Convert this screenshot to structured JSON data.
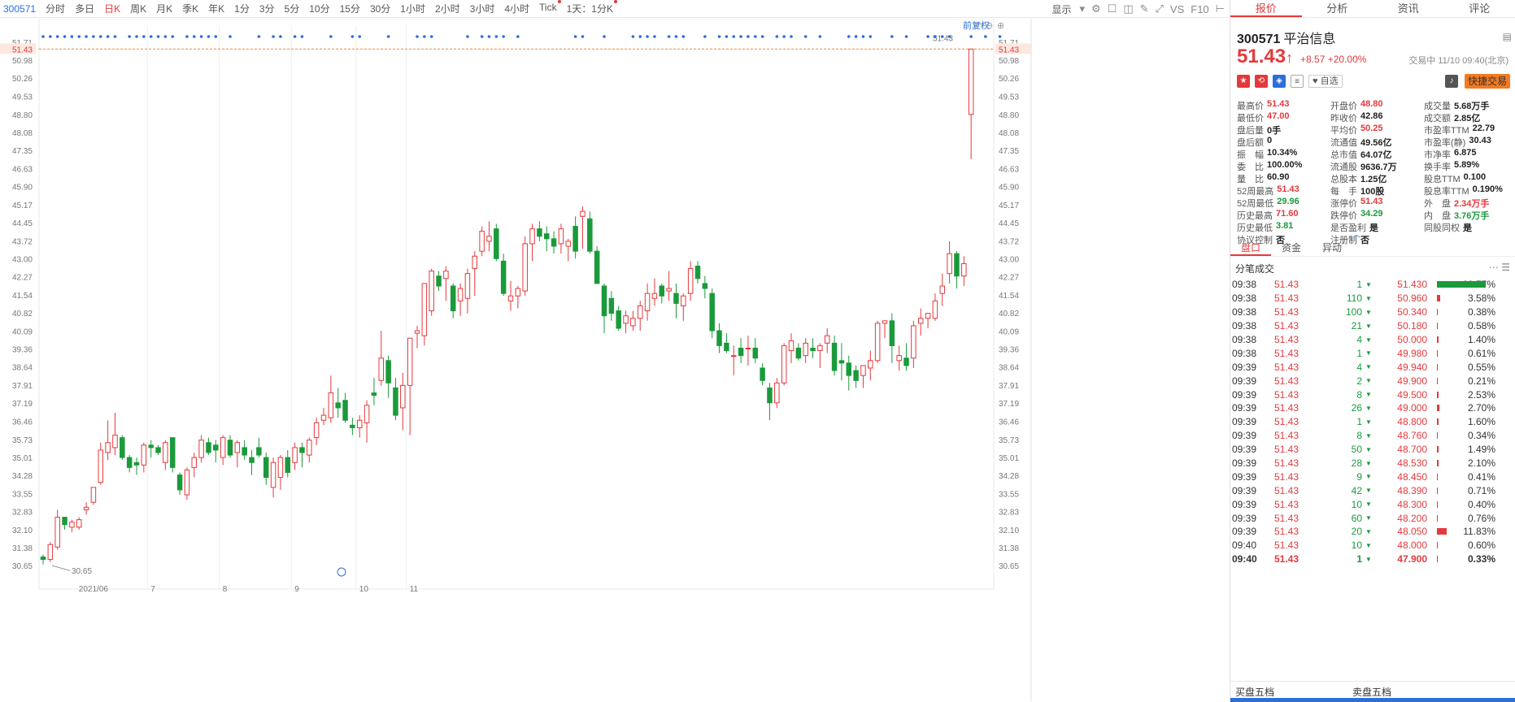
{
  "toolbar": {
    "code": "300571",
    "periods": [
      "分时",
      "多日",
      "日K",
      "周K",
      "月K",
      "季K",
      "年K",
      "1分",
      "3分",
      "5分",
      "10分",
      "15分",
      "30分",
      "1小时",
      "2小时",
      "3小时",
      "4小时",
      "Tick",
      "1天：1分K"
    ],
    "active_index": 2,
    "display_label": "显示",
    "icons": [
      "gear-icon",
      "checkbox-icon",
      "camera-icon",
      "pen-icon",
      "expand-icon",
      "VS",
      "F10",
      "collapse-icon"
    ]
  },
  "chart_overlay": {
    "adjust_label": "前复权",
    "price_flag": "51.43",
    "min_label": "30.65",
    "zoom_icons": [
      "undo-icon",
      "zoom-out-icon",
      "zoom-in-icon"
    ]
  },
  "chart_data": {
    "type": "candlestick",
    "ylim": [
      30.2,
      51.9
    ],
    "y_ticks": [
      "51.71",
      "51.43",
      "50.98",
      "50.26",
      "49.53",
      "48.80",
      "48.08",
      "47.35",
      "46.63",
      "45.90",
      "45.17",
      "44.45",
      "43.72",
      "43.00",
      "42.27",
      "41.54",
      "40.82",
      "40.09",
      "39.36",
      "38.64",
      "37.91",
      "37.19",
      "36.46",
      "35.73",
      "35.01",
      "34.28",
      "33.55",
      "32.83",
      "32.10",
      "31.38",
      "30.65"
    ],
    "x_labels": [
      "2021/06",
      "7",
      "8",
      "9",
      "10",
      "11"
    ],
    "x_label_index": [
      5,
      15,
      25,
      35,
      44,
      51
    ],
    "last_price": 51.43,
    "candles": [
      [
        31.0,
        31.1,
        30.7,
        30.9
      ],
      [
        30.9,
        31.6,
        30.8,
        31.5
      ],
      [
        31.4,
        32.9,
        31.3,
        32.6
      ],
      [
        32.6,
        32.6,
        32.1,
        32.3
      ],
      [
        32.2,
        32.5,
        32.0,
        32.4
      ],
      [
        32.2,
        32.6,
        32.1,
        32.5
      ],
      [
        32.9,
        33.2,
        32.7,
        33.0
      ],
      [
        33.2,
        33.8,
        33.1,
        33.8
      ],
      [
        34.0,
        35.6,
        33.9,
        35.3
      ],
      [
        35.2,
        36.5,
        34.9,
        35.6
      ],
      [
        35.4,
        36.8,
        35.1,
        35.9
      ],
      [
        35.8,
        35.9,
        34.9,
        35.0
      ],
      [
        35.0,
        35.1,
        34.4,
        34.6
      ],
      [
        34.8,
        35.0,
        34.3,
        34.7
      ],
      [
        34.7,
        35.6,
        34.4,
        35.5
      ],
      [
        35.5,
        35.7,
        35.0,
        35.4
      ],
      [
        35.4,
        35.5,
        35.1,
        35.2
      ],
      [
        34.8,
        35.7,
        34.5,
        35.6
      ],
      [
        35.8,
        35.8,
        34.4,
        34.6
      ],
      [
        34.3,
        34.4,
        33.5,
        33.7
      ],
      [
        33.5,
        34.6,
        33.3,
        34.5
      ],
      [
        34.6,
        35.2,
        34.2,
        35.0
      ],
      [
        35.0,
        35.9,
        34.8,
        35.7
      ],
      [
        35.6,
        35.8,
        35.1,
        35.2
      ],
      [
        35.5,
        35.7,
        34.8,
        35.3
      ],
      [
        35.0,
        35.9,
        34.7,
        35.8
      ],
      [
        35.7,
        35.9,
        35.0,
        35.1
      ],
      [
        35.2,
        35.7,
        34.6,
        35.6
      ],
      [
        35.4,
        35.7,
        34.9,
        35.1
      ],
      [
        35.0,
        35.3,
        34.3,
        34.8
      ],
      [
        35.4,
        35.8,
        35.0,
        35.1
      ],
      [
        35.0,
        35.2,
        33.9,
        34.2
      ],
      [
        33.8,
        35.0,
        33.4,
        34.8
      ],
      [
        34.2,
        35.1,
        33.7,
        35.0
      ],
      [
        35.0,
        35.3,
        34.2,
        34.4
      ],
      [
        34.8,
        35.6,
        34.5,
        35.4
      ],
      [
        35.4,
        35.6,
        34.6,
        35.2
      ],
      [
        35.1,
        35.8,
        34.8,
        35.7
      ],
      [
        35.8,
        36.6,
        35.5,
        36.4
      ],
      [
        36.5,
        37.0,
        36.3,
        36.7
      ],
      [
        36.6,
        38.3,
        36.4,
        37.6
      ],
      [
        37.2,
        37.8,
        36.6,
        37.0
      ],
      [
        37.3,
        37.6,
        36.4,
        36.5
      ],
      [
        36.3,
        36.6,
        35.9,
        36.2
      ],
      [
        36.2,
        36.7,
        35.8,
        36.5
      ],
      [
        36.4,
        37.3,
        35.6,
        37.1
      ],
      [
        37.6,
        38.2,
        37.1,
        37.5
      ],
      [
        38.1,
        40.1,
        37.9,
        39.0
      ],
      [
        38.9,
        39.1,
        37.4,
        38.0
      ],
      [
        37.8,
        38.2,
        36.5,
        36.7
      ],
      [
        37.0,
        38.4,
        36.1,
        37.9
      ],
      [
        37.9,
        39.8,
        35.9,
        39.8
      ],
      [
        40.0,
        40.3,
        39.4,
        40.1
      ],
      [
        39.9,
        42.0,
        39.5,
        42.0
      ],
      [
        40.9,
        42.6,
        40.7,
        42.5
      ],
      [
        42.3,
        42.5,
        41.7,
        41.9
      ],
      [
        42.2,
        42.7,
        41.3,
        42.5
      ],
      [
        41.9,
        42.0,
        40.6,
        40.9
      ],
      [
        41.3,
        42.0,
        40.7,
        41.8
      ],
      [
        41.4,
        42.6,
        40.8,
        42.4
      ],
      [
        42.6,
        43.3,
        41.5,
        43.1
      ],
      [
        43.3,
        44.3,
        43.1,
        44.1
      ],
      [
        43.7,
        44.5,
        43.3,
        43.9
      ],
      [
        44.2,
        44.4,
        42.9,
        43.0
      ],
      [
        42.9,
        43.2,
        41.5,
        41.6
      ],
      [
        41.3,
        42.1,
        40.9,
        41.5
      ],
      [
        41.5,
        41.9,
        41.0,
        41.8
      ],
      [
        41.7,
        43.9,
        41.5,
        43.6
      ],
      [
        43.6,
        44.4,
        42.9,
        44.2
      ],
      [
        44.2,
        44.5,
        43.7,
        43.9
      ],
      [
        44.0,
        44.3,
        43.3,
        43.8
      ],
      [
        43.8,
        44.1,
        43.2,
        43.5
      ],
      [
        43.6,
        44.4,
        43.2,
        44.2
      ],
      [
        43.5,
        43.8,
        42.9,
        43.7
      ],
      [
        44.3,
        44.7,
        43.0,
        43.3
      ],
      [
        44.7,
        45.1,
        43.4,
        44.9
      ],
      [
        44.6,
        44.9,
        43.2,
        43.3
      ],
      [
        43.3,
        43.5,
        42.0,
        42.0
      ],
      [
        41.9,
        42.0,
        40.0,
        40.7
      ],
      [
        41.4,
        41.7,
        40.5,
        40.8
      ],
      [
        40.9,
        41.1,
        40.1,
        40.2
      ],
      [
        40.4,
        40.9,
        40.0,
        40.7
      ],
      [
        40.3,
        40.9,
        40.1,
        40.6
      ],
      [
        40.6,
        41.3,
        40.1,
        41.1
      ],
      [
        40.9,
        42.0,
        40.5,
        41.6
      ],
      [
        41.4,
        42.2,
        41.1,
        41.6
      ],
      [
        41.9,
        42.0,
        41.2,
        41.5
      ],
      [
        41.7,
        42.5,
        41.3,
        41.8
      ],
      [
        41.6,
        42.0,
        40.6,
        41.2
      ],
      [
        41.1,
        41.6,
        40.5,
        41.5
      ],
      [
        41.6,
        42.9,
        41.3,
        42.6
      ],
      [
        42.7,
        42.9,
        42.0,
        42.2
      ],
      [
        42.0,
        42.3,
        41.4,
        41.8
      ],
      [
        41.6,
        41.8,
        39.8,
        40.1
      ],
      [
        40.1,
        40.4,
        39.2,
        39.5
      ],
      [
        39.6,
        40.0,
        39.2,
        39.3
      ],
      [
        39.1,
        39.5,
        38.3,
        39.1
      ],
      [
        39.4,
        39.8,
        38.8,
        39.1
      ],
      [
        39.4,
        39.9,
        38.7,
        39.4
      ],
      [
        39.4,
        39.8,
        38.8,
        39.0
      ],
      [
        38.6,
        38.8,
        37.9,
        38.1
      ],
      [
        37.8,
        38.0,
        36.5,
        37.2
      ],
      [
        37.2,
        38.2,
        37.0,
        38.0
      ],
      [
        38.0,
        39.6,
        37.9,
        39.5
      ],
      [
        39.3,
        40.0,
        38.8,
        39.7
      ],
      [
        39.4,
        39.6,
        38.9,
        39.0
      ],
      [
        39.1,
        39.8,
        38.8,
        39.6
      ],
      [
        39.4,
        39.8,
        39.0,
        39.3
      ],
      [
        39.3,
        39.6,
        38.6,
        39.5
      ],
      [
        39.6,
        40.2,
        39.2,
        39.9
      ],
      [
        39.6,
        39.9,
        38.3,
        38.5
      ],
      [
        38.9,
        39.6,
        38.1,
        38.8
      ],
      [
        38.8,
        39.1,
        37.7,
        38.3
      ],
      [
        38.5,
        38.7,
        37.8,
        38.1
      ],
      [
        38.3,
        38.7,
        37.8,
        38.7
      ],
      [
        38.6,
        39.3,
        38.1,
        38.9
      ],
      [
        38.9,
        40.5,
        38.8,
        40.4
      ],
      [
        40.4,
        40.5,
        39.8,
        40.5
      ],
      [
        40.5,
        40.8,
        38.8,
        39.5
      ],
      [
        38.9,
        39.5,
        38.5,
        39.1
      ],
      [
        39.0,
        39.6,
        38.5,
        38.7
      ],
      [
        39.0,
        40.5,
        38.6,
        40.3
      ],
      [
        40.4,
        41.0,
        39.9,
        40.6
      ],
      [
        40.6,
        40.8,
        40.2,
        40.8
      ],
      [
        40.6,
        41.6,
        40.5,
        41.3
      ],
      [
        41.6,
        42.4,
        41.1,
        41.9
      ],
      [
        42.4,
        43.7,
        42.0,
        43.2
      ],
      [
        43.2,
        43.3,
        41.8,
        42.3
      ],
      [
        42.3,
        43.1,
        41.9,
        42.8
      ],
      [
        48.8,
        51.43,
        47.0,
        51.43
      ]
    ],
    "dots": [
      0,
      1,
      2,
      3,
      4,
      5,
      6,
      7,
      8,
      9,
      10,
      12,
      13,
      14,
      15,
      16,
      17,
      18,
      20,
      21,
      22,
      23,
      24,
      26,
      30,
      32,
      33,
      35,
      36,
      40,
      43,
      44,
      48,
      52,
      53,
      54,
      59,
      61,
      62,
      63,
      64,
      66,
      74,
      75,
      78,
      82,
      83,
      84,
      85,
      87,
      88,
      89,
      92,
      94,
      95,
      96,
      97,
      98,
      99,
      100,
      102,
      103,
      104,
      106,
      108,
      112,
      113,
      114,
      115,
      118,
      120,
      123,
      124,
      125,
      126,
      129,
      131,
      133
    ]
  },
  "panel": {
    "tabs": [
      "报价",
      "分析",
      "资讯",
      "评论"
    ],
    "active_tab": 0,
    "stock_code": "300571",
    "stock_name": "平治信息",
    "price": "51.43",
    "arrow": "↑",
    "change": "+8.57",
    "change_pct": "+20.00%",
    "trade_status": "交易中 11/10 09:40(北京)",
    "watch_label": "自选",
    "fast_trade": "快捷交易",
    "stats": [
      [
        {
          "k": "最高价",
          "v": "51.43",
          "c": "red"
        },
        {
          "k": "开盘价",
          "v": "48.80",
          "c": "red"
        },
        {
          "k": "成交量",
          "v": "5.68万手",
          "c": "blk"
        }
      ],
      [
        {
          "k": "最低价",
          "v": "47.00",
          "c": "red"
        },
        {
          "k": "昨收价",
          "v": "42.86",
          "c": "blk"
        },
        {
          "k": "成交额",
          "v": "2.85亿",
          "c": "blk"
        }
      ],
      [
        {
          "k": "盘后量",
          "v": "0手",
          "c": "blk"
        },
        {
          "k": "平均价",
          "v": "50.25",
          "c": "red"
        },
        {
          "k": "市盈率TTM",
          "v": "22.79",
          "c": "blk"
        }
      ],
      [
        {
          "k": "盘后额",
          "v": "0",
          "c": "blk"
        },
        {
          "k": "流通值",
          "v": "49.56亿",
          "c": "blk"
        },
        {
          "k": "市盈率(静)",
          "v": "30.43",
          "c": "blk"
        }
      ],
      [
        {
          "k": "振　幅",
          "v": "10.34%",
          "c": "blk"
        },
        {
          "k": "总市值",
          "v": "64.07亿",
          "c": "blk"
        },
        {
          "k": "市净率",
          "v": "6.875",
          "c": "blk"
        }
      ],
      [
        {
          "k": "委　比",
          "v": "100.00%",
          "c": "blk"
        },
        {
          "k": "流通股",
          "v": "9636.7万",
          "c": "blk"
        },
        {
          "k": "换手率",
          "v": "5.89%",
          "c": "blk"
        }
      ],
      [
        {
          "k": "量　比",
          "v": "60.90",
          "c": "blk"
        },
        {
          "k": "总股本",
          "v": "1.25亿",
          "c": "blk"
        },
        {
          "k": "股息TTM",
          "v": "0.100",
          "c": "blk"
        }
      ],
      [
        {
          "k": "52周最高",
          "v": "51.43",
          "c": "red"
        },
        {
          "k": "每　手",
          "v": "100股",
          "c": "blk"
        },
        {
          "k": "股息率TTM",
          "v": "0.190%",
          "c": "blk"
        }
      ],
      [
        {
          "k": "52周最低",
          "v": "29.96",
          "c": "grn"
        },
        {
          "k": "涨停价",
          "v": "51.43",
          "c": "red"
        },
        {
          "k": "外　盘",
          "v": "2.34万手",
          "c": "red"
        }
      ],
      [
        {
          "k": "历史最高",
          "v": "71.60",
          "c": "red"
        },
        {
          "k": "跌停价",
          "v": "34.29",
          "c": "grn"
        },
        {
          "k": "内　盘",
          "v": "3.76万手",
          "c": "grn"
        }
      ],
      [
        {
          "k": "历史最低",
          "v": "3.81",
          "c": "grn"
        },
        {
          "k": "是否盈利",
          "v": "是",
          "c": "blk"
        },
        {
          "k": "同股同权",
          "v": "是",
          "c": "blk"
        }
      ],
      [
        {
          "k": "协议控制",
          "v": "否",
          "c": "blk"
        },
        {
          "k": "注册制",
          "v": "否",
          "c": "blk"
        },
        {
          "k": "",
          "v": "",
          "c": "blk"
        }
      ]
    ],
    "subtabs": [
      "盘口",
      "资金",
      "异动"
    ],
    "tick_title": "分笔成交",
    "ticks": [
      {
        "t": "09:38",
        "p": "51.43",
        "q": "1",
        "lp": "51.430",
        "bar": 1.0,
        "pct": "60.77%"
      },
      {
        "t": "09:38",
        "p": "51.43",
        "q": "110",
        "lp": "50.960",
        "bar": 0.06,
        "pct": "3.58%"
      },
      {
        "t": "09:38",
        "p": "51.43",
        "q": "100",
        "lp": "50.340",
        "bar": 0.01,
        "pct": "0.38%"
      },
      {
        "t": "09:38",
        "p": "51.43",
        "q": "21",
        "lp": "50.180",
        "bar": 0.01,
        "pct": "0.58%"
      },
      {
        "t": "09:38",
        "p": "51.43",
        "q": "4",
        "lp": "50.000",
        "bar": 0.03,
        "pct": "1.40%"
      },
      {
        "t": "09:38",
        "p": "51.43",
        "q": "1",
        "lp": "49.980",
        "bar": 0.01,
        "pct": "0.61%"
      },
      {
        "t": "09:39",
        "p": "51.43",
        "q": "4",
        "lp": "49.940",
        "bar": 0.01,
        "pct": "0.55%"
      },
      {
        "t": "09:39",
        "p": "51.43",
        "q": "2",
        "lp": "49.900",
        "bar": 0.01,
        "pct": "0.21%"
      },
      {
        "t": "09:39",
        "p": "51.43",
        "q": "8",
        "lp": "49.500",
        "bar": 0.04,
        "pct": "2.53%"
      },
      {
        "t": "09:39",
        "p": "51.43",
        "q": "26",
        "lp": "49.000",
        "bar": 0.05,
        "pct": "2.70%"
      },
      {
        "t": "09:39",
        "p": "51.43",
        "q": "1",
        "lp": "48.800",
        "bar": 0.03,
        "pct": "1.60%"
      },
      {
        "t": "09:39",
        "p": "51.43",
        "q": "8",
        "lp": "48.760",
        "bar": 0.01,
        "pct": "0.34%"
      },
      {
        "t": "09:39",
        "p": "51.43",
        "q": "50",
        "lp": "48.700",
        "bar": 0.03,
        "pct": "1.49%"
      },
      {
        "t": "09:39",
        "p": "51.43",
        "q": "28",
        "lp": "48.530",
        "bar": 0.04,
        "pct": "2.10%"
      },
      {
        "t": "09:39",
        "p": "51.43",
        "q": "9",
        "lp": "48.450",
        "bar": 0.01,
        "pct": "0.41%"
      },
      {
        "t": "09:39",
        "p": "51.43",
        "q": "42",
        "lp": "48.390",
        "bar": 0.01,
        "pct": "0.71%"
      },
      {
        "t": "09:39",
        "p": "51.43",
        "q": "10",
        "lp": "48.300",
        "bar": 0.01,
        "pct": "0.40%"
      },
      {
        "t": "09:39",
        "p": "51.43",
        "q": "60",
        "lp": "48.200",
        "bar": 0.01,
        "pct": "0.76%"
      },
      {
        "t": "09:39",
        "p": "51.43",
        "q": "20",
        "lp": "48.050",
        "bar": 0.2,
        "pct": "11.83%"
      },
      {
        "t": "09:40",
        "p": "51.43",
        "q": "10",
        "lp": "48.000",
        "bar": 0.01,
        "pct": "0.60%"
      },
      {
        "t": "09:40",
        "p": "51.43",
        "q": "1",
        "lp": "47.900",
        "bar": 0.01,
        "pct": "0.33%"
      }
    ],
    "buy5": "买盘五档",
    "sell5": "卖盘五档"
  }
}
